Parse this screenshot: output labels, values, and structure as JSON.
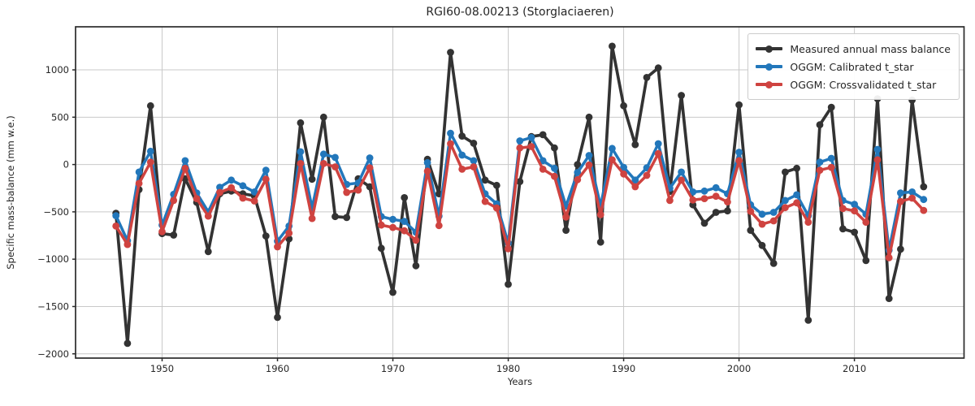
{
  "title": "RGI60-08.00213 (Storglaciaeren)",
  "axes": {
    "xlabel": "Years",
    "ylabel": "Specific mass-balance (mm w.e.)",
    "x_ticks": [
      1950,
      1960,
      1970,
      1980,
      1990,
      2000,
      2010
    ],
    "y_ticks": [
      1000,
      500,
      0,
      -500,
      -1000,
      -1500,
      -2000
    ]
  },
  "legend": {
    "position": "upper right",
    "entries": [
      {
        "label": "Measured annual mass balance"
      },
      {
        "label": "OGGM: Calibrated t_star"
      },
      {
        "label": "OGGM: Crossvalidated t_star"
      }
    ]
  },
  "colors": {
    "measured": "#333333",
    "calibrated": "#2277bb",
    "crossvalidated": "#cf4340",
    "grid": "#c9c9c9",
    "spine": "#2b2b2b",
    "text": "#262626"
  },
  "chart_data": {
    "type": "line",
    "title": "RGI60-08.00213 (Storglaciaeren)",
    "xlabel": "Years",
    "ylabel": "Specific mass-balance (mm w.e.)",
    "xlim": [
      1942.5,
      2019.5
    ],
    "ylim": [
      -2045,
      1455
    ],
    "grid": true,
    "legend_position": "upper right",
    "x": [
      1946,
      1947,
      1948,
      1949,
      1950,
      1951,
      1952,
      1953,
      1954,
      1955,
      1956,
      1957,
      1958,
      1959,
      1960,
      1961,
      1962,
      1963,
      1964,
      1965,
      1966,
      1967,
      1968,
      1969,
      1970,
      1971,
      1972,
      1973,
      1974,
      1975,
      1976,
      1977,
      1978,
      1979,
      1980,
      1981,
      1982,
      1983,
      1984,
      1985,
      1986,
      1987,
      1988,
      1989,
      1990,
      1991,
      1992,
      1993,
      1994,
      1995,
      1996,
      1997,
      1998,
      1999,
      2000,
      2001,
      2002,
      2003,
      2004,
      2005,
      2006,
      2007,
      2008,
      2009,
      2010,
      2011,
      2012,
      2013,
      2014,
      2015,
      2016
    ],
    "series": [
      {
        "name": "Measured annual mass balance",
        "color": "#333333",
        "values": [
          -515,
          -1890,
          -265,
          620,
          -730,
          -745,
          -150,
          -400,
          -920,
          -310,
          -280,
          -310,
          -330,
          -755,
          -1615,
          -785,
          440,
          -155,
          500,
          -550,
          -560,
          -150,
          -235,
          -885,
          -1350,
          -350,
          -1070,
          55,
          -310,
          1185,
          300,
          225,
          -165,
          -220,
          -1265,
          -180,
          295,
          315,
          175,
          -695,
          0,
          500,
          -820,
          1250,
          620,
          210,
          920,
          1020,
          -285,
          730,
          -425,
          -620,
          -505,
          -490,
          630,
          -695,
          -855,
          -1045,
          -80,
          -40,
          -1645,
          420,
          605,
          -680,
          -715,
          -1015,
          695,
          -1415,
          -895,
          680,
          -235
        ]
      },
      {
        "name": "OGGM: Calibrated t_star",
        "color": "#2277bb",
        "values": [
          -540,
          -805,
          -80,
          140,
          -640,
          -315,
          40,
          -300,
          -500,
          -240,
          -165,
          -225,
          -290,
          -60,
          -810,
          -650,
          135,
          -460,
          110,
          75,
          -210,
          -195,
          70,
          -550,
          -580,
          -600,
          -715,
          20,
          -545,
          330,
          100,
          40,
          -310,
          -415,
          -830,
          250,
          285,
          40,
          -40,
          -440,
          -85,
          95,
          -440,
          170,
          -30,
          -165,
          -35,
          220,
          -250,
          -80,
          -290,
          -280,
          -245,
          -310,
          130,
          -425,
          -525,
          -505,
          -380,
          -320,
          -540,
          25,
          65,
          -380,
          -420,
          -525,
          160,
          -905,
          -300,
          -290,
          -370
        ]
      },
      {
        "name": "OGGM: Crossvalidated t_star",
        "color": "#cf4340",
        "values": [
          -650,
          -845,
          -200,
          25,
          -710,
          -380,
          -40,
          -360,
          -545,
          -295,
          -245,
          -355,
          -385,
          -155,
          -870,
          -725,
          10,
          -570,
          10,
          -25,
          -295,
          -270,
          -35,
          -640,
          -665,
          -700,
          -800,
          -70,
          -645,
          220,
          -50,
          -25,
          -390,
          -460,
          -890,
          175,
          190,
          -50,
          -125,
          -555,
          -160,
          -5,
          -530,
          50,
          -100,
          -235,
          -115,
          115,
          -380,
          -165,
          -375,
          -360,
          -335,
          -395,
          40,
          -495,
          -630,
          -595,
          -455,
          -405,
          -610,
          -60,
          -30,
          -465,
          -490,
          -610,
          50,
          -985,
          -390,
          -355,
          -485
        ]
      }
    ]
  }
}
